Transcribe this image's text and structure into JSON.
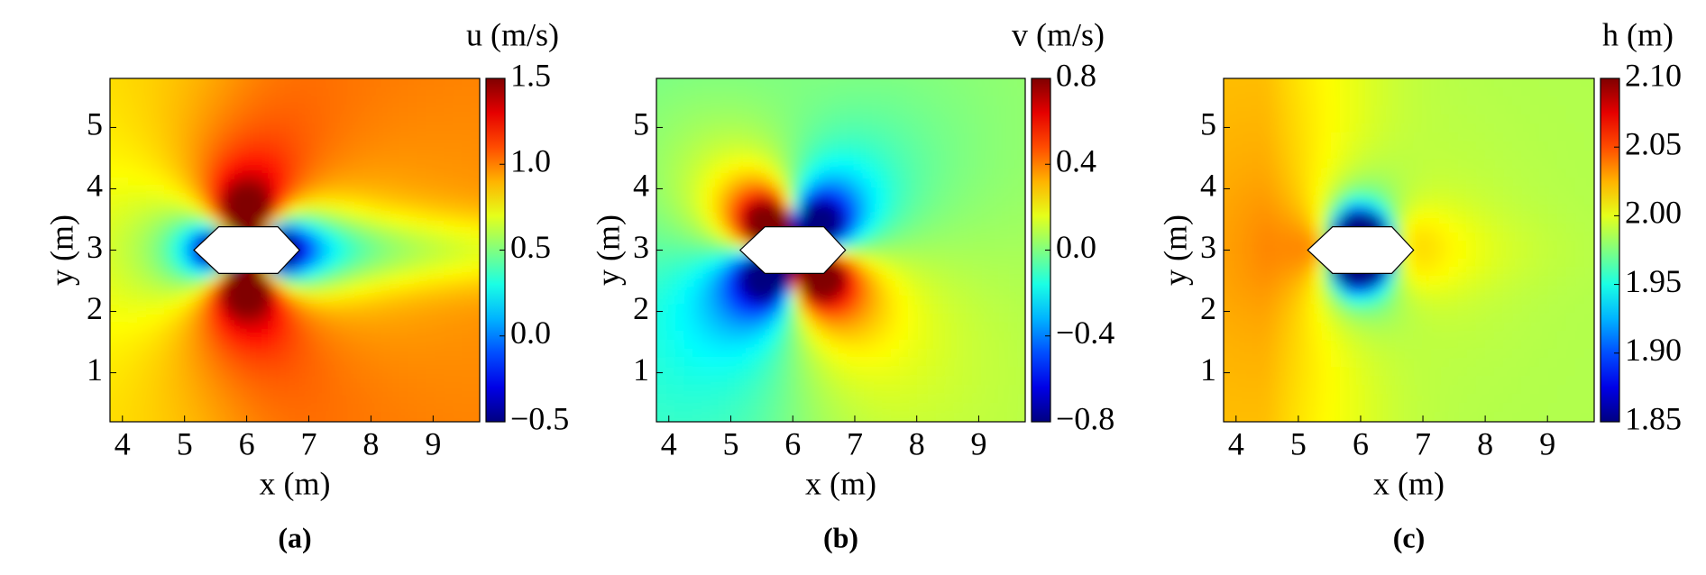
{
  "chart_data": [
    {
      "type": "heatmap",
      "xlabel": "x (m)",
      "ylabel": "y (m)",
      "colorbar_label": "u (m/s)",
      "caption": "(a)",
      "xlim": [
        3.8,
        9.75
      ],
      "ylim": [
        0.2,
        5.8
      ],
      "xticks": [
        4,
        5,
        6,
        7,
        8,
        9
      ],
      "yticks": [
        1,
        2,
        3,
        4,
        5
      ],
      "clim": [
        -0.5,
        1.5
      ],
      "cticks": [
        {
          "value": -0.5,
          "label": "−0.5"
        },
        {
          "value": 0,
          "label": "0.0"
        },
        0.5,
        {
          "value": 1,
          "label": "1.0"
        },
        1.5
      ],
      "colormap": "jet"
    },
    {
      "type": "heatmap",
      "xlabel": "x (m)",
      "ylabel": "y (m)",
      "colorbar_label": "v (m/s)",
      "caption": "(b)",
      "xlim": [
        3.8,
        9.75
      ],
      "ylim": [
        0.2,
        5.8
      ],
      "xticks": [
        4,
        5,
        6,
        7,
        8,
        9
      ],
      "yticks": [
        1,
        2,
        3,
        4,
        5
      ],
      "clim": [
        -0.8,
        0.8
      ],
      "cticks": [
        {
          "value": -0.8,
          "label": "−0.8"
        },
        {
          "value": -0.4,
          "label": "−0.4"
        },
        {
          "value": 0,
          "label": "0.0"
        },
        0.4,
        0.8
      ],
      "colormap": "jet"
    },
    {
      "type": "heatmap",
      "xlabel": "x (m)",
      "ylabel": "y (m)",
      "colorbar_label": "h (m)",
      "caption": "(c)",
      "xlim": [
        3.8,
        9.75
      ],
      "ylim": [
        0.2,
        5.8
      ],
      "xticks": [
        4,
        5,
        6,
        7,
        8,
        9
      ],
      "yticks": [
        1,
        2,
        3,
        4,
        5
      ],
      "clim": [
        1.85,
        2.1
      ],
      "cticks": [
        1.85,
        {
          "value": 1.9,
          "label": "1.90"
        },
        1.95,
        {
          "value": 2,
          "label": "2.00"
        },
        2.05,
        {
          "value": 2.1,
          "label": "2.10"
        }
      ],
      "colormap": "jet"
    }
  ]
}
